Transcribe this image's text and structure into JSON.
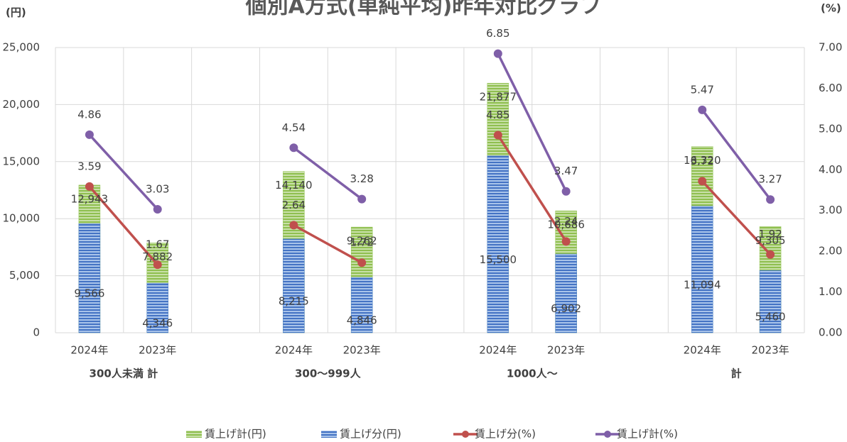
{
  "chart_data": {
    "type": "bar-line",
    "title": "個別A方式(単純平均)昨年対比グラフ",
    "y_label": "(円)",
    "y2_label": "(%)",
    "categories": [
      "2024年",
      "2023年",
      null,
      "2024年",
      "2023年",
      null,
      "2024年",
      "2023年",
      null,
      "2024年",
      "2023年"
    ],
    "group_labels": [
      "300人未満 計",
      "300～999人",
      "1000人～",
      "計"
    ],
    "ylim": [
      0,
      25000
    ],
    "yticks": [
      0,
      {
        "value": 5000,
        "label": "5,000"
      },
      {
        "value": 10000,
        "label": "10,000"
      },
      {
        "value": 15000,
        "label": "15,000"
      },
      {
        "value": 20000,
        "label": "20,000"
      },
      {
        "value": 25000,
        "label": "25,000"
      }
    ],
    "y2lim": [
      0,
      7
    ],
    "y2ticks": [
      {
        "value": 0,
        "label": "0.00"
      },
      {
        "value": 1,
        "label": "1.00"
      },
      {
        "value": 2,
        "label": "2.00"
      },
      {
        "value": 3,
        "label": "3.00"
      },
      {
        "value": 4,
        "label": "4.00"
      },
      {
        "value": 5,
        "label": "5.00"
      },
      {
        "value": 6,
        "label": "6.00"
      },
      {
        "value": 7,
        "label": "7.00"
      }
    ],
    "grid": true,
    "series": [
      {
        "name": "賃上げ計(円)",
        "type": "bar",
        "color": "#92c353",
        "values": [
          12943,
          7882,
          null,
          14140,
          9262,
          null,
          21877,
          10686,
          null,
          16320,
          9305
        ],
        "value_labels": [
          "12,943",
          "7,882",
          null,
          "14,140",
          "9,262",
          null,
          "21,877",
          "10,686",
          null,
          "16,320",
          "9,305"
        ]
      },
      {
        "name": "賃上げ分(円)",
        "type": "bar",
        "color": "#4a7ec9",
        "values": [
          9566,
          4346,
          null,
          8215,
          4846,
          null,
          15500,
          6902,
          null,
          11094,
          5460
        ],
        "value_labels": [
          "9,566",
          "4,346",
          null,
          "8,215",
          "4,846",
          null,
          "15,500",
          "6,902",
          null,
          "11,094",
          "5,460"
        ]
      },
      {
        "name": "賃上げ分(%)",
        "type": "line",
        "axis": "y2",
        "color": "#c0504d",
        "values": [
          3.59,
          1.67,
          null,
          2.64,
          1.72,
          null,
          4.85,
          2.24,
          null,
          3.72,
          1.92
        ]
      },
      {
        "name": "賃上げ計(%)",
        "type": "line",
        "axis": "y2",
        "color": "#7f5fa8",
        "values": [
          4.86,
          3.03,
          null,
          4.54,
          3.28,
          null,
          6.85,
          3.47,
          null,
          5.47,
          3.27
        ]
      }
    ]
  }
}
